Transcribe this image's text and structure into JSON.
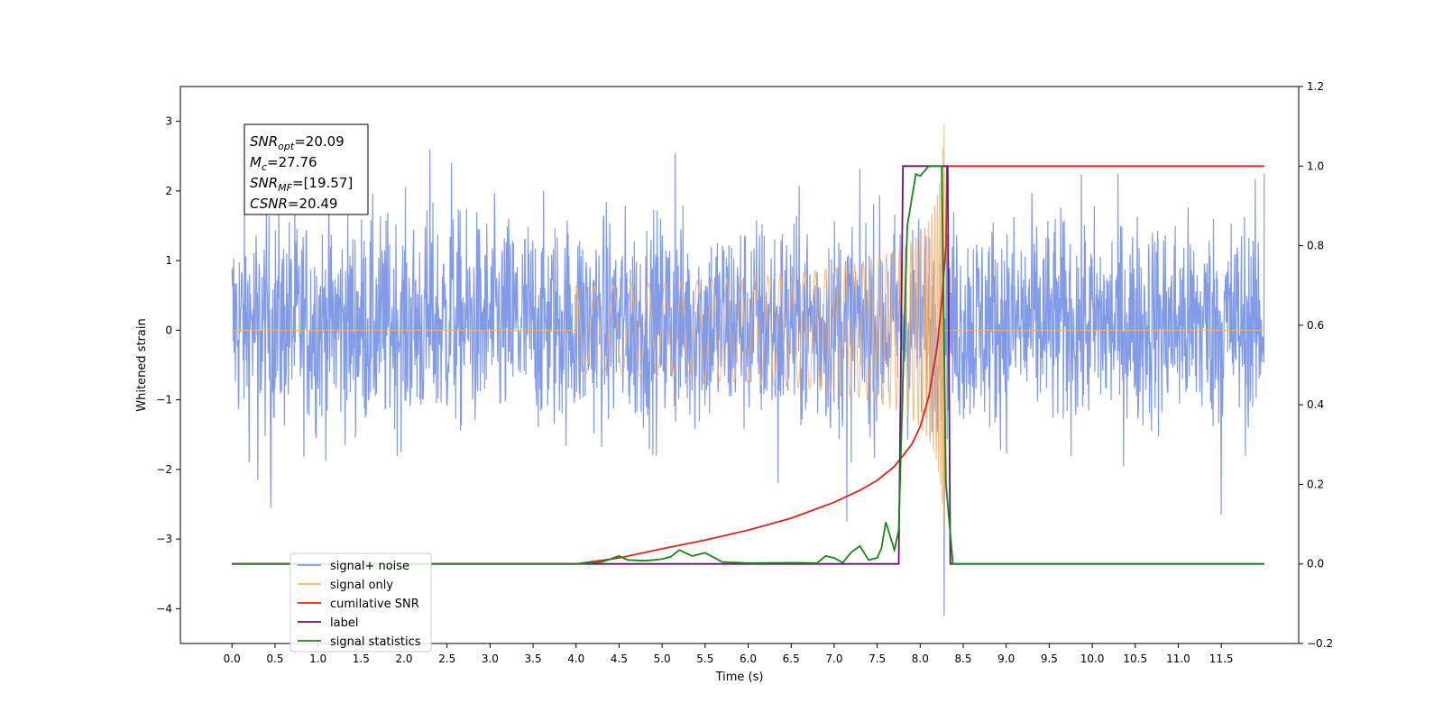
{
  "chart_data": {
    "type": "line",
    "title": "",
    "xlabel": "Time (s)",
    "ylabel": "Whitened strain",
    "xlim": [
      -0.6,
      12.4
    ],
    "ylim": [
      -4.5,
      3.5
    ],
    "y2lim": [
      -0.2,
      1.2
    ],
    "x_ticks": [
      "0.0",
      "0.5",
      "1.0",
      "1.5",
      "2.0",
      "2.5",
      "3.0",
      "3.5",
      "4.0",
      "4.5",
      "5.0",
      "5.5",
      "6.0",
      "6.5",
      "7.0",
      "7.5",
      "8.0",
      "8.5",
      "9.0",
      "9.5",
      "10.0",
      "10.5",
      "11.0",
      "11.5"
    ],
    "y_ticks": [
      "3",
      "2",
      "1",
      "0",
      "−1",
      "−2",
      "−3",
      "−4"
    ],
    "y2_ticks": [
      "1.2",
      "1.0",
      "0.8",
      "0.6",
      "0.4",
      "0.2",
      "0.0",
      "−0.2"
    ],
    "grid": false,
    "legend_position": "lower-left",
    "annotations": [
      {
        "base": "SNR",
        "sub": "opt",
        "value": "=20.09"
      },
      {
        "base": "M",
        "sub": "c",
        "value": "=27.76"
      },
      {
        "base": "SNR",
        "sub": "MF",
        "value": "=[19.57]"
      },
      {
        "base": "CSNR",
        "sub": "",
        "value": "=20.49"
      }
    ],
    "series": [
      {
        "name": "signal+ noise",
        "color": "#7b96e8",
        "axis": "left",
        "noise": {
          "x_start": 0.0,
          "x_end": 12.0,
          "typical_range": [
            -1.3,
            1.5
          ],
          "max": 2.6,
          "min": -2.55
        },
        "spikes": [
          [
            0.45,
            -2.55
          ],
          [
            0.3,
            -2.15
          ],
          [
            2.3,
            2.6
          ],
          [
            2.55,
            2.4
          ],
          [
            5.15,
            2.55
          ],
          [
            7.15,
            -2.75
          ],
          [
            6.35,
            -2.2
          ],
          [
            8.28,
            3.15
          ],
          [
            8.28,
            -4.1
          ],
          [
            11.5,
            -2.65
          ],
          [
            12.0,
            2.25
          ]
        ]
      },
      {
        "name": "signal only",
        "color": "#f5b46e",
        "axis": "left",
        "chirp": {
          "x_start": 4.0,
          "x_merger": 8.28,
          "x_end": 12.0,
          "peak_amplitude": 3.15
        }
      },
      {
        "name": "cumilative SNR",
        "color": "#e8201a",
        "axis": "right",
        "x": [
          0.0,
          4.0,
          4.5,
          5.0,
          5.5,
          6.0,
          6.5,
          7.0,
          7.3,
          7.5,
          7.7,
          7.9,
          8.0,
          8.1,
          8.2,
          8.25,
          8.3,
          8.31,
          12.0
        ],
        "values": [
          0.0,
          0.0,
          0.015,
          0.038,
          0.06,
          0.085,
          0.115,
          0.155,
          0.185,
          0.21,
          0.245,
          0.3,
          0.345,
          0.42,
          0.55,
          0.66,
          0.8,
          1.0,
          1.0
        ]
      },
      {
        "name": "label",
        "color": "#6e0f78",
        "axis": "right",
        "x": [
          0.0,
          7.75,
          7.8,
          8.32,
          8.35,
          12.0
        ],
        "values": [
          0.0,
          0.0,
          1.0,
          1.0,
          0.0,
          0.0
        ]
      },
      {
        "name": "signal statistics",
        "color": "#128a12",
        "axis": "right",
        "x": [
          0.0,
          4.0,
          4.3,
          4.4,
          4.5,
          4.6,
          4.8,
          5.0,
          5.1,
          5.2,
          5.35,
          5.5,
          5.7,
          6.0,
          6.5,
          6.8,
          6.9,
          7.0,
          7.1,
          7.2,
          7.3,
          7.4,
          7.5,
          7.55,
          7.6,
          7.7,
          7.75,
          7.85,
          7.95,
          8.0,
          8.1,
          8.2,
          8.25,
          8.3,
          8.38,
          12.0
        ],
        "values": [
          0.0,
          0.0,
          0.005,
          0.012,
          0.02,
          0.01,
          0.008,
          0.012,
          0.018,
          0.035,
          0.02,
          0.028,
          0.005,
          0.002,
          0.003,
          0.002,
          0.02,
          0.015,
          0.003,
          0.03,
          0.045,
          0.01,
          0.015,
          0.04,
          0.105,
          0.035,
          0.085,
          0.85,
          0.98,
          0.975,
          1.0,
          1.0,
          1.0,
          0.2,
          0.0,
          0.0
        ]
      }
    ]
  }
}
